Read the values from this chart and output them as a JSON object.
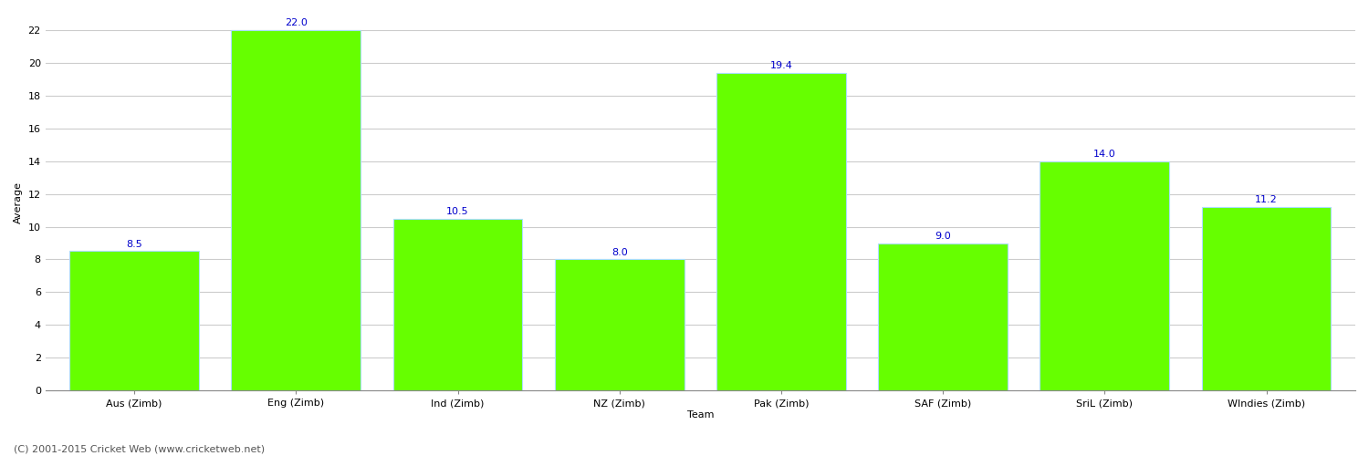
{
  "categories": [
    "Aus (Zimb)",
    "Eng (Zimb)",
    "Ind (Zimb)",
    "NZ (Zimb)",
    "Pak (Zimb)",
    "SAF (Zimb)",
    "SriL (Zimb)",
    "WIndies (Zimb)"
  ],
  "values": [
    8.5,
    22.0,
    10.5,
    8.0,
    19.4,
    9.0,
    14.0,
    11.2
  ],
  "bar_color": "#66FF00",
  "bar_edge_color": "#AADDFF",
  "xlabel": "Team",
  "ylabel": "Average",
  "ylim": [
    0,
    23
  ],
  "yticks": [
    0,
    2,
    4,
    6,
    8,
    10,
    12,
    14,
    16,
    18,
    20,
    22
  ],
  "label_color": "#0000CC",
  "label_fontsize": 8,
  "axis_fontsize": 8,
  "title_fontsize": 11,
  "background_color": "#FFFFFF",
  "grid_color": "#CCCCCC",
  "footer_text": "(C) 2001-2015 Cricket Web (www.cricketweb.net)",
  "footer_fontsize": 8,
  "footer_color": "#555555"
}
